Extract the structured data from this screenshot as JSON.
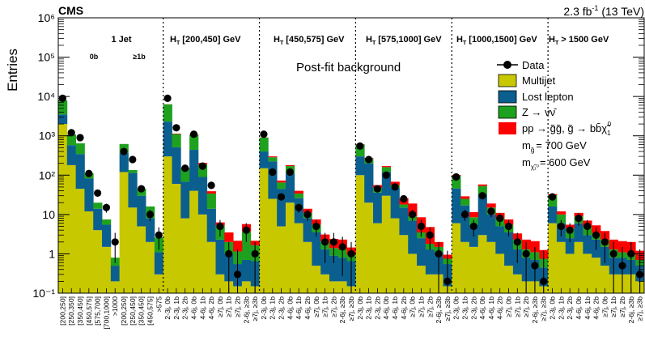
{
  "header": {
    "experiment": "CMS",
    "lumi_main": "2.3 fb",
    "lumi_exp": "-1",
    "lumi_energy": "(13 TeV)"
  },
  "annotation": "Post-fit background",
  "region_labels": {
    "r0_main": "1 Jet",
    "r0_sub_a": "0b",
    "r0_sub_b": "≥1b",
    "r1_sym": "H",
    "r1_sub": "T",
    "r1_rng": "[200,450] GeV",
    "r2_sym": "H",
    "r2_sub": "T",
    "r2_rng": "[450,575] GeV",
    "r3_sym": "H",
    "r3_sub": "T",
    "r3_rng": "[575,1000] GeV",
    "r4_sym": "H",
    "r4_sub": "T",
    "r4_rng": "[1000,1500] GeV",
    "r5_sym": "H",
    "r5_sub": "T",
    "r5_rng": "> 1500 GeV"
  },
  "legend": {
    "data": "Data",
    "multijet": "Multijet",
    "lostlep": "Lost lepton",
    "znn": "Z → νν̄",
    "signal_a": "pp → g̃g̃, g̃ → bb̄χ̃",
    "signal_sup": "0",
    "signal_sub": "1",
    "mgl_label": "m",
    "mgl_sub": "g̃",
    "mgl_val": "= 700 GeV",
    "mchi_label": "m",
    "mchi_sub": "χ̃₁⁰",
    "mchi_val": "= 600 GeV"
  },
  "colors": {
    "multijet": "#c8c800",
    "lostlep": "#0b5f8f",
    "znn": "#1ea11e",
    "signal": "#ff0000",
    "data": "#000000"
  },
  "chart_data": {
    "type": "bar",
    "stacked": true,
    "ylabel": "Entries",
    "ylog": true,
    "ylim": [
      0.1,
      1000000
    ],
    "yticks": [
      "10⁻¹",
      "1",
      "10",
      "10²",
      "10³",
      "10⁴",
      "10⁵",
      "10⁶"
    ],
    "categories": [
      "[200,250]",
      "[250,350]",
      "[350,450]",
      "[450,575]",
      "[575,700]",
      "[700,1000]",
      ">1000",
      "[200,250]",
      "[250,450]",
      "[350,450]",
      "[450,575]",
      ">575",
      "2-3j, 0b",
      "2-3j, 1b",
      "2-3j, 2b",
      "4-6j, 0b",
      "4-6j, 1b",
      "4-6j, 2b",
      "≥7j, 0b",
      "≥7j, 1b",
      "≥7j, 2b",
      "2-6j, ≥3b",
      "≥7j, ≥3b",
      "2-3j, 0b",
      "2-3j, 1b",
      "2-3j, 2b",
      "4-6j, 0b",
      "4-6j, 1b",
      "4-6j, 2b",
      "≥7j, 0b",
      "≥7j, 1b",
      "≥7j, 2b",
      "2-6j, ≥3b",
      "≥7j, ≥3b",
      "2-3j, 0b",
      "2-3j, 1b",
      "2-3j, 2b",
      "4-6j, 0b",
      "4-6j, 1b",
      "4-6j, 2b",
      "≥7j, 0b",
      "≥7j, 1b",
      "≥7j, 2b",
      "2-6j, ≥3b",
      "≥7j, ≥3b",
      "2-3j, 0b",
      "2-3j, 1b",
      "2-3j, 2b",
      "4-6j, 0b",
      "4-6j, 1b",
      "4-6j, 2b",
      "≥7j, 0b",
      "≥7j, 1b",
      "≥7j, 2b",
      "2-6j, ≥3b",
      "≥7j, ≥3b",
      "2-3j, 0b",
      "2-3j, 1b",
      "2-3j, 2b",
      "4-6j, 0b",
      "4-6j, 1b",
      "4-6j, 2b",
      "≥7j, 0b",
      "≥7j, 1b",
      "≥7j, 2b",
      "2-6j, ≥3b",
      "≥7j, ≥3b"
    ],
    "region_boundaries": [
      12,
      23,
      34,
      45,
      56
    ],
    "series": [
      {
        "name": "Multijet",
        "values": [
          2000,
          180,
          45,
          12,
          4,
          1.5,
          0.2,
          120,
          15,
          5,
          2,
          0.3,
          300,
          60,
          8,
          40,
          10,
          2,
          0.3,
          0.2,
          0.15,
          0.2,
          0.15,
          150,
          25,
          5,
          20,
          6,
          2,
          0.5,
          0.3,
          0.2,
          0.2,
          0.15,
          100,
          20,
          6,
          30,
          8,
          3,
          1,
          0.5,
          0.3,
          0.3,
          0.15,
          6,
          2,
          1.5,
          3,
          2,
          1,
          0.5,
          0.3,
          0.2,
          0.2,
          0.15,
          6,
          2,
          1,
          2,
          1,
          0.8,
          0.5,
          0.3,
          0.3,
          0.3,
          0.2
        ]
      },
      {
        "name": "Lost lepton",
        "values": [
          1500,
          400,
          300,
          70,
          10,
          4,
          0.3,
          250,
          100,
          25,
          6,
          0.8,
          2000,
          450,
          60,
          400,
          80,
          12,
          2,
          0.8,
          0.4,
          0.5,
          0.5,
          250,
          200,
          40,
          90,
          20,
          6,
          3,
          1,
          0.7,
          0.6,
          0.5,
          200,
          180,
          30,
          90,
          40,
          12,
          6,
          2,
          1,
          0.8,
          0.4,
          40,
          15,
          4,
          30,
          8,
          4,
          3,
          1,
          0.6,
          0.5,
          0.3,
          10,
          4,
          1.5,
          4,
          2,
          1.5,
          1,
          0.5,
          0.5,
          0.4,
          0.3
        ]
      },
      {
        "name": "Z → νν̄",
        "values": [
          4500,
          500,
          300,
          30,
          6,
          2,
          0.3,
          250,
          20,
          15,
          8,
          1.5,
          4000,
          600,
          80,
          600,
          100,
          20,
          3,
          1,
          0.6,
          3,
          1,
          500,
          60,
          20,
          60,
          8,
          3,
          2,
          0.8,
          0.5,
          0.5,
          0.3,
          300,
          60,
          12,
          40,
          8,
          3,
          2,
          1,
          0.5,
          0.4,
          0.2,
          50,
          8,
          3,
          20,
          5,
          3,
          2,
          1,
          0.5,
          0.4,
          0.3,
          15,
          4,
          2,
          3,
          2,
          1,
          0.8,
          0.5,
          0.3,
          0.3,
          0.2
        ]
      },
      {
        "name": "pp → g̃g̃, g̃ → bb̄χ̃₁⁰",
        "values": [
          0,
          0,
          0,
          0,
          0,
          0,
          0,
          0,
          0,
          0,
          0,
          0,
          50,
          30,
          5,
          40,
          15,
          5,
          1,
          1.5,
          1,
          2,
          0.5,
          10,
          15,
          8,
          10,
          6,
          3,
          2,
          1,
          1,
          1,
          0.5,
          10,
          12,
          8,
          10,
          12,
          8,
          10,
          5,
          3,
          0.5,
          0.2,
          5,
          4,
          3,
          5,
          4,
          3,
          2,
          1,
          1,
          1,
          0.5,
          2,
          2,
          1,
          2,
          2,
          2,
          1.5,
          1,
          1,
          1,
          0.5
        ]
      },
      {
        "name": "Data",
        "values": [
          9000,
          1200,
          900,
          110,
          35,
          15,
          2,
          400,
          250,
          45,
          10,
          3,
          9000,
          1600,
          150,
          1100,
          170,
          55,
          5,
          1,
          0.3,
          4,
          1,
          1100,
          120,
          28,
          120,
          15,
          10,
          5,
          2,
          2,
          1.5,
          1,
          550,
          250,
          45,
          100,
          50,
          25,
          10,
          5,
          3,
          1,
          0.2,
          90,
          10,
          5,
          30,
          12,
          8,
          5,
          2,
          1,
          0.5,
          0.2,
          28,
          5,
          4,
          8,
          5,
          3,
          2,
          1,
          0.5,
          1,
          0.3
        ]
      }
    ]
  }
}
